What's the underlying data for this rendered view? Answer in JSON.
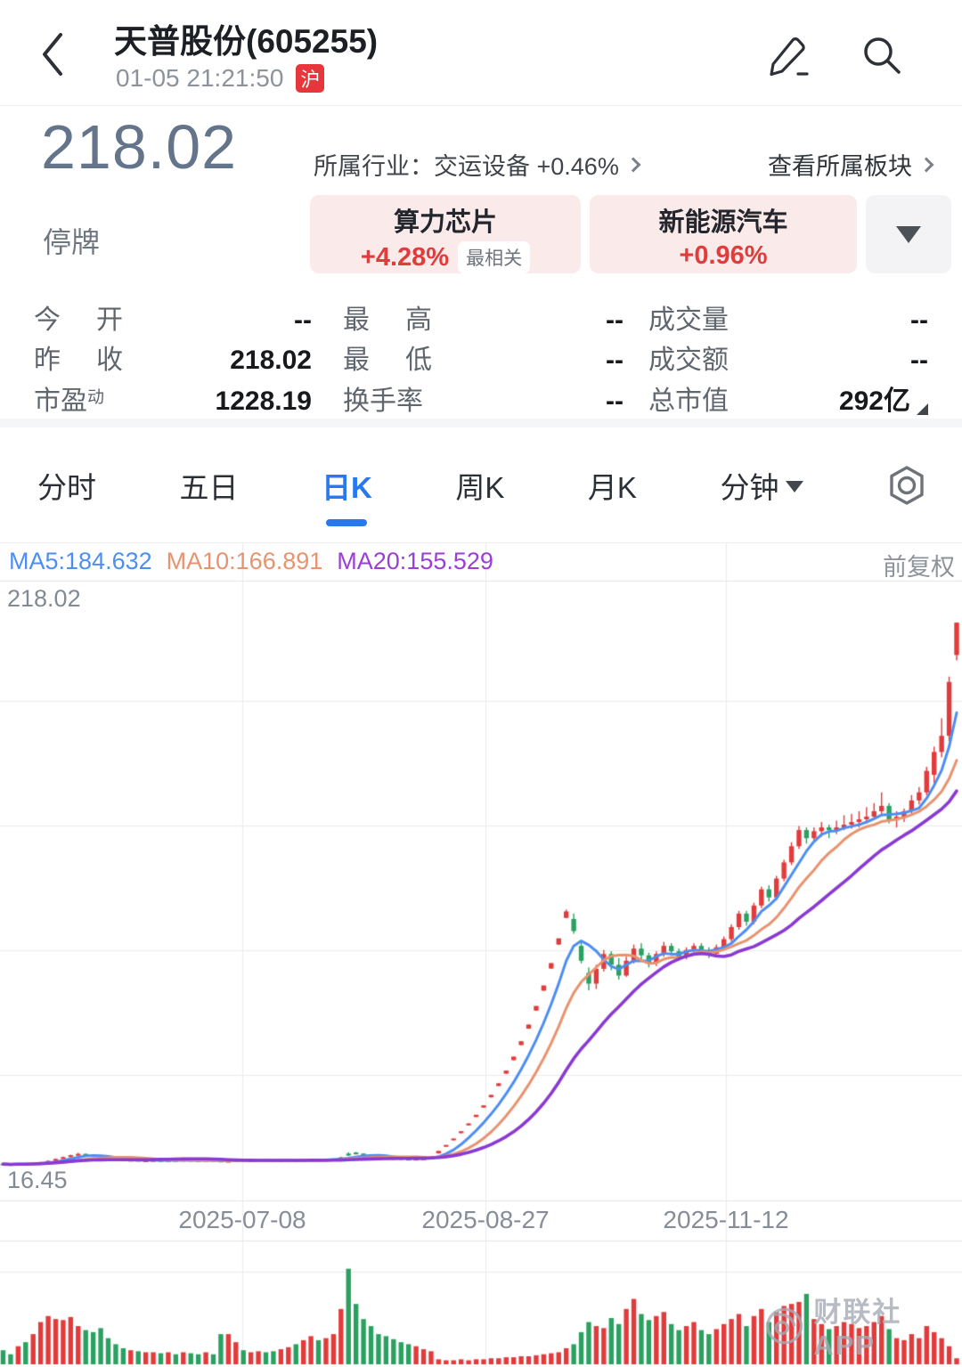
{
  "header": {
    "title": "天普股份(605255)",
    "time": "01-05 21:21:50",
    "market_badge": "沪"
  },
  "quote": {
    "price": "218.02",
    "status": "停牌",
    "industry_prefix": "所属行业：",
    "industry": "交运设备 +0.46%",
    "sector_link": "查看所属板块",
    "tags": [
      {
        "name": "算力芯片",
        "change": "+4.28%",
        "badge": "最相关"
      },
      {
        "name": "新能源汽车",
        "change": "+0.96%"
      }
    ]
  },
  "stats": {
    "rows": [
      [
        {
          "label": "今开",
          "value": "--"
        },
        {
          "label": "最高",
          "value": "--"
        },
        {
          "label": "成交量",
          "value": "--"
        }
      ],
      [
        {
          "label": "昨收",
          "value": "218.02"
        },
        {
          "label": "最低",
          "value": "--"
        },
        {
          "label": "成交额",
          "value": "--"
        }
      ],
      [
        {
          "label": "市盈",
          "sup": "动",
          "value": "1228.19"
        },
        {
          "label": "换手率",
          "value": "--"
        },
        {
          "label": "总市值",
          "value": "292亿"
        }
      ]
    ]
  },
  "tabs": {
    "items": [
      {
        "label": "分时"
      },
      {
        "label": "五日"
      },
      {
        "label": "日K"
      },
      {
        "label": "周K"
      },
      {
        "label": "月K"
      },
      {
        "label": "分钟"
      }
    ],
    "active": "日K"
  },
  "chart": {
    "ma5_label": "MA5:184.632",
    "ma10_label": "MA10:166.891",
    "ma20_label": "MA20:155.529",
    "adjust_label": "前复权",
    "y_max_label": "218.02",
    "y_min_label": "16.45"
  },
  "watermark": {
    "text": "财联社APP"
  },
  "chart_data": {
    "type": "candlestick",
    "title": "天普股份(605255) 日K 前复权",
    "y_axis": {
      "max_label": 218.02,
      "min_label": 16.45,
      "scale_max": 233.6,
      "scale_min": 3.5
    },
    "x_axis": {
      "tick_labels": [
        "2025-07-08",
        "2025-08-27",
        "2025-11-12"
      ],
      "tick_x": [
        272,
        545,
        815
      ]
    },
    "ma_values": {
      "MA5": 184.632,
      "MA10": 166.891,
      "MA20": 155.529
    },
    "colors": {
      "up": "#e23b3b",
      "down": "#2aa160",
      "ma5": "#4d8ef2",
      "ma10": "#e8936f",
      "ma20": "#8a3ad2"
    },
    "columns": [
      "open",
      "high",
      "low",
      "close",
      "rel_volume"
    ],
    "candles": [
      [
        17.2,
        17.4,
        16.8,
        17.0,
        0.14
      ],
      [
        17.0,
        17.1,
        16.45,
        16.8,
        0.1
      ],
      [
        16.8,
        17.3,
        16.7,
        17.1,
        0.18
      ],
      [
        17.1,
        17.2,
        16.8,
        17.0,
        0.22
      ],
      [
        17.0,
        17.5,
        16.9,
        17.4,
        0.3
      ],
      [
        17.4,
        17.8,
        17.3,
        17.7,
        0.42
      ],
      [
        17.7,
        18.4,
        17.6,
        18.2,
        0.48
      ],
      [
        18.2,
        19.1,
        18.1,
        18.9,
        0.45
      ],
      [
        18.9,
        19.8,
        18.8,
        19.6,
        0.44
      ],
      [
        19.6,
        20.5,
        19.5,
        20.3,
        0.47
      ],
      [
        20.3,
        21.2,
        20.1,
        20.8,
        0.38
      ],
      [
        20.8,
        20.9,
        20.2,
        20.4,
        0.34
      ],
      [
        20.4,
        20.5,
        19.6,
        19.8,
        0.32
      ],
      [
        19.8,
        19.9,
        19.1,
        19.3,
        0.36
      ],
      [
        19.3,
        19.4,
        18.8,
        19.0,
        0.26
      ],
      [
        19.0,
        19.2,
        18.6,
        18.7,
        0.2
      ],
      [
        18.7,
        18.9,
        18.4,
        18.5,
        0.16
      ],
      [
        18.5,
        18.7,
        18.3,
        18.6,
        0.14
      ],
      [
        18.6,
        18.7,
        18.2,
        18.3,
        0.13
      ],
      [
        18.3,
        18.5,
        18.1,
        18.4,
        0.12
      ],
      [
        18.4,
        18.6,
        18.2,
        18.5,
        0.12
      ],
      [
        18.5,
        18.6,
        18.1,
        18.2,
        0.11
      ],
      [
        18.2,
        18.6,
        18.1,
        18.5,
        0.12
      ],
      [
        18.5,
        18.6,
        18.2,
        18.3,
        0.1
      ],
      [
        18.3,
        18.7,
        18.2,
        18.6,
        0.12
      ],
      [
        18.6,
        18.7,
        18.3,
        18.4,
        0.11
      ],
      [
        18.4,
        18.5,
        18.0,
        18.2,
        0.1
      ],
      [
        18.2,
        18.6,
        18.1,
        18.5,
        0.12
      ],
      [
        18.5,
        18.6,
        18.2,
        18.3,
        0.1
      ],
      [
        18.3,
        18.4,
        18.0,
        18.1,
        0.3
      ],
      [
        18.1,
        18.3,
        17.9,
        18.2,
        0.3
      ],
      [
        18.2,
        18.6,
        18.1,
        18.5,
        0.22
      ],
      [
        18.5,
        18.6,
        18.1,
        18.2,
        0.14
      ],
      [
        18.2,
        18.5,
        18.1,
        18.4,
        0.12
      ],
      [
        18.4,
        18.7,
        18.3,
        18.6,
        0.13
      ],
      [
        18.6,
        18.7,
        18.4,
        18.5,
        0.12
      ],
      [
        18.5,
        18.6,
        18.2,
        18.3,
        0.13
      ],
      [
        18.3,
        18.5,
        18.2,
        18.4,
        0.15
      ],
      [
        18.4,
        18.6,
        18.3,
        18.5,
        0.17
      ],
      [
        18.5,
        18.6,
        18.2,
        18.3,
        0.2
      ],
      [
        18.3,
        18.7,
        18.2,
        18.6,
        0.24
      ],
      [
        18.6,
        18.8,
        18.4,
        18.7,
        0.28
      ],
      [
        18.7,
        18.9,
        18.5,
        18.6,
        0.24
      ],
      [
        18.6,
        18.8,
        18.4,
        18.7,
        0.26
      ],
      [
        18.7,
        19.1,
        18.6,
        18.9,
        0.3
      ],
      [
        18.9,
        19.7,
        18.8,
        19.5,
        0.55
      ],
      [
        20.9,
        21.4,
        20.0,
        20.2,
        0.95
      ],
      [
        21.3,
        21.5,
        20.6,
        20.9,
        0.6
      ],
      [
        20.9,
        21.0,
        20.3,
        20.5,
        0.45
      ],
      [
        20.5,
        20.6,
        19.8,
        20.0,
        0.38
      ],
      [
        20.0,
        20.1,
        19.4,
        19.6,
        0.3
      ],
      [
        19.6,
        19.8,
        19.2,
        19.4,
        0.28
      ],
      [
        19.4,
        19.5,
        19.0,
        19.2,
        0.25
      ],
      [
        19.2,
        19.3,
        18.8,
        19.0,
        0.22
      ],
      [
        19.0,
        19.2,
        18.8,
        18.9,
        0.2
      ],
      [
        18.9,
        19.2,
        18.8,
        19.0,
        0.18
      ],
      [
        19.0,
        19.3,
        18.9,
        19.1,
        0.15
      ],
      [
        19.1,
        19.9,
        19.0,
        19.9,
        0.13
      ],
      [
        21.0,
        21.9,
        20.9,
        21.9,
        0.05
      ],
      [
        23.6,
        24.1,
        23.5,
        24.1,
        0.04
      ],
      [
        25.9,
        26.5,
        25.8,
        26.5,
        0.04
      ],
      [
        28.5,
        29.2,
        28.4,
        29.2,
        0.05
      ],
      [
        31.4,
        32.1,
        31.3,
        32.1,
        0.04
      ],
      [
        34.5,
        35.3,
        34.4,
        35.3,
        0.05
      ],
      [
        38.0,
        38.8,
        37.9,
        38.8,
        0.05
      ],
      [
        41.8,
        42.7,
        41.7,
        42.7,
        0.06
      ],
      [
        46.0,
        47.0,
        45.9,
        47.0,
        0.06
      ],
      [
        50.6,
        51.7,
        50.5,
        51.7,
        0.07
      ],
      [
        55.6,
        56.9,
        55.5,
        56.9,
        0.07
      ],
      [
        61.2,
        62.6,
        61.1,
        62.6,
        0.08
      ],
      [
        67.3,
        68.8,
        67.2,
        68.8,
        0.08
      ],
      [
        74.0,
        75.7,
        73.9,
        75.7,
        0.09
      ],
      [
        81.4,
        83.3,
        81.3,
        83.3,
        0.1
      ],
      [
        89.6,
        91.6,
        89.5,
        91.6,
        0.11
      ],
      [
        98.5,
        100.8,
        98.4,
        100.8,
        0.12
      ],
      [
        108.4,
        111.5,
        108.3,
        110.8,
        0.16
      ],
      [
        108.0,
        110.0,
        102.5,
        103.5,
        0.2
      ],
      [
        98.0,
        99.5,
        91.5,
        92.5,
        0.32
      ],
      [
        88.0,
        90.0,
        81.5,
        84.0,
        0.42
      ],
      [
        84.0,
        91.0,
        82.0,
        89.5,
        0.38
      ],
      [
        89.5,
        96.5,
        88.5,
        95.0,
        0.36
      ],
      [
        95.0,
        96.0,
        89.0,
        91.0,
        0.46
      ],
      [
        91.0,
        93.5,
        85.5,
        87.0,
        0.4
      ],
      [
        87.0,
        94.0,
        86.5,
        92.5,
        0.55
      ],
      [
        92.5,
        98.5,
        91.5,
        97.0,
        0.65
      ],
      [
        97.0,
        99.0,
        93.0,
        94.5,
        0.5
      ],
      [
        94.5,
        95.5,
        90.0,
        91.5,
        0.44
      ],
      [
        91.5,
        96.0,
        90.5,
        95.0,
        0.48
      ],
      [
        95.0,
        99.5,
        94.0,
        98.0,
        0.52
      ],
      [
        98.0,
        99.0,
        94.5,
        96.0,
        0.4
      ],
      [
        96.0,
        97.0,
        92.5,
        94.0,
        0.34
      ],
      [
        94.0,
        97.5,
        93.0,
        96.5,
        0.38
      ],
      [
        96.5,
        99.0,
        95.5,
        98.0,
        0.42
      ],
      [
        98.0,
        99.0,
        95.0,
        96.5,
        0.34
      ],
      [
        96.5,
        97.5,
        93.5,
        95.0,
        0.3
      ],
      [
        95.0,
        98.5,
        94.0,
        97.5,
        0.35
      ],
      [
        97.5,
        101.5,
        96.5,
        100.5,
        0.4
      ],
      [
        100.5,
        106.0,
        99.5,
        105.0,
        0.45
      ],
      [
        105.0,
        111.0,
        104.0,
        110.0,
        0.5
      ],
      [
        110.0,
        111.0,
        105.5,
        107.0,
        0.38
      ],
      [
        107.0,
        114.0,
        106.0,
        113.0,
        0.48
      ],
      [
        113.0,
        120.0,
        112.0,
        119.0,
        0.55
      ],
      [
        119.0,
        120.5,
        114.5,
        116.0,
        0.42
      ],
      [
        116.0,
        124.0,
        115.0,
        123.0,
        0.52
      ],
      [
        123.0,
        130.0,
        122.0,
        129.0,
        0.58
      ],
      [
        129.0,
        136.5,
        128.0,
        135.0,
        0.6
      ],
      [
        135.0,
        142.5,
        134.0,
        141.0,
        0.62
      ],
      [
        141.0,
        142.0,
        136.0,
        138.0,
        0.7
      ],
      [
        138.0,
        142.0,
        136.5,
        140.6,
        0.45
      ],
      [
        140.6,
        144.0,
        138.5,
        142.0,
        0.4
      ],
      [
        142.0,
        143.0,
        138.0,
        141.0,
        0.35
      ],
      [
        141.0,
        144.5,
        139.5,
        142.0,
        0.38
      ],
      [
        142.0,
        146.5,
        141.0,
        143.0,
        0.42
      ],
      [
        143.0,
        147.0,
        141.5,
        144.0,
        0.4
      ],
      [
        144.0,
        148.0,
        142.0,
        145.0,
        0.36
      ],
      [
        145.0,
        149.5,
        143.5,
        146.0,
        0.38
      ],
      [
        146.0,
        151.0,
        145.0,
        148.0,
        0.42
      ],
      [
        148.0,
        155.0,
        147.0,
        150.0,
        0.48
      ],
      [
        150.0,
        151.0,
        143.5,
        145.0,
        0.35
      ],
      [
        145.0,
        148.0,
        142.0,
        146.0,
        0.26
      ],
      [
        146.0,
        149.0,
        144.0,
        148.0,
        0.24
      ],
      [
        148.0,
        154.0,
        146.5,
        152.0,
        0.3
      ],
      [
        152.0,
        157.0,
        150.5,
        155.0,
        0.26
      ],
      [
        155.0,
        164.5,
        154.0,
        163.0,
        0.38
      ],
      [
        161.5,
        172.0,
        158.5,
        170.0,
        0.32
      ],
      [
        170.0,
        182.5,
        168.0,
        176.0,
        0.26
      ],
      [
        176.0,
        198.0,
        174.0,
        196.0,
        0.18
      ],
      [
        206.0,
        218.02,
        204.0,
        218.02,
        0.06
      ]
    ]
  }
}
